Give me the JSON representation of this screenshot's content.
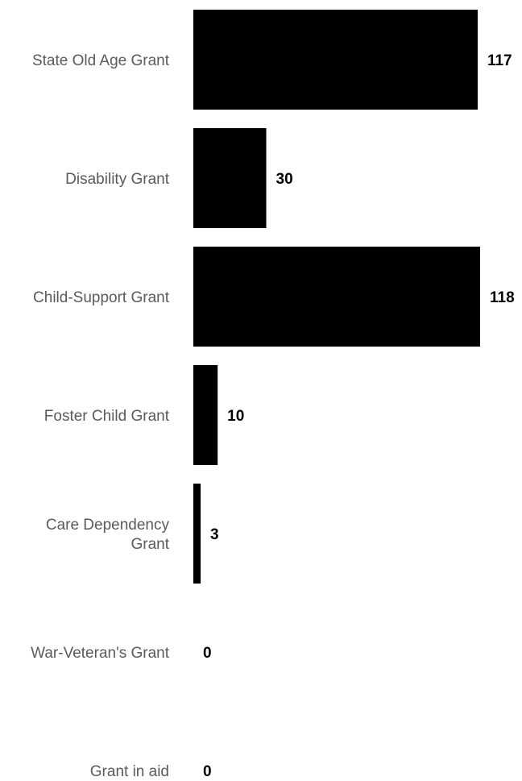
{
  "chart_data": {
    "type": "bar",
    "orientation": "horizontal",
    "title": "",
    "xlabel": "",
    "ylabel": "",
    "categories": [
      [
        "State Old Age Grant"
      ],
      [
        "Disability Grant"
      ],
      [
        "Child-Support Grant"
      ],
      [
        "Foster Child Grant"
      ],
      [
        "Care Dependency",
        "Grant"
      ],
      [
        "War-Veteran's Grant"
      ],
      [
        "Grant in aid"
      ]
    ],
    "values": [
      117,
      30,
      118,
      10,
      3,
      0,
      0
    ],
    "value_labels": [
      "117",
      "30",
      "118",
      "10",
      "3",
      "0",
      "0"
    ],
    "xlim": [
      0,
      118
    ],
    "grid": false,
    "legend": "none",
    "bar_color": "#000000",
    "category_label_color": "#5a5a5a",
    "value_label_color": "#000000"
  }
}
